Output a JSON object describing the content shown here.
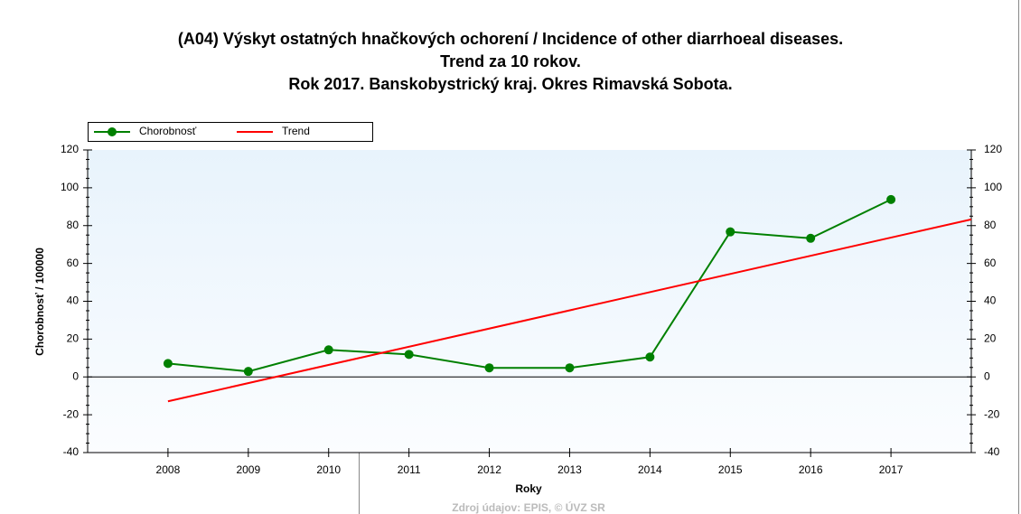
{
  "chart_data": {
    "type": "line",
    "title": [
      "(A04) Výskyt ostatných hnačkových ochorení / Incidence of other diarrhoeal diseases.",
      "Trend za 10 rokov.",
      "Rok 2017. Banskobystrický kraj. Okres Rimavská Sobota."
    ],
    "xlabel": "Roky",
    "ylabel": "Chorobnosť / 100000",
    "source": "Zdroj údajov: EPIS, © ÚVZ SR",
    "xlim": [
      2007,
      2018
    ],
    "xticks": [
      2008,
      2009,
      2010,
      2011,
      2012,
      2013,
      2014,
      2015,
      2016,
      2017
    ],
    "ylim": [
      -40,
      120
    ],
    "yticks": [
      -40,
      -20,
      0,
      20,
      40,
      60,
      80,
      100,
      120
    ],
    "series": [
      {
        "name": "Chorobnosť",
        "color": "#008000",
        "markers": true,
        "x": [
          2008,
          2009,
          2010,
          2011,
          2012,
          2013,
          2014,
          2015,
          2016,
          2017
        ],
        "values": [
          7.1,
          2.9,
          14.3,
          11.9,
          4.8,
          4.8,
          10.5,
          76.7,
          73.3,
          93.8
        ]
      },
      {
        "name": "Trend",
        "color": "#ff0000",
        "markers": false,
        "x": [
          2008,
          2018
        ],
        "values": [
          -12.9,
          83.3
        ]
      }
    ]
  }
}
